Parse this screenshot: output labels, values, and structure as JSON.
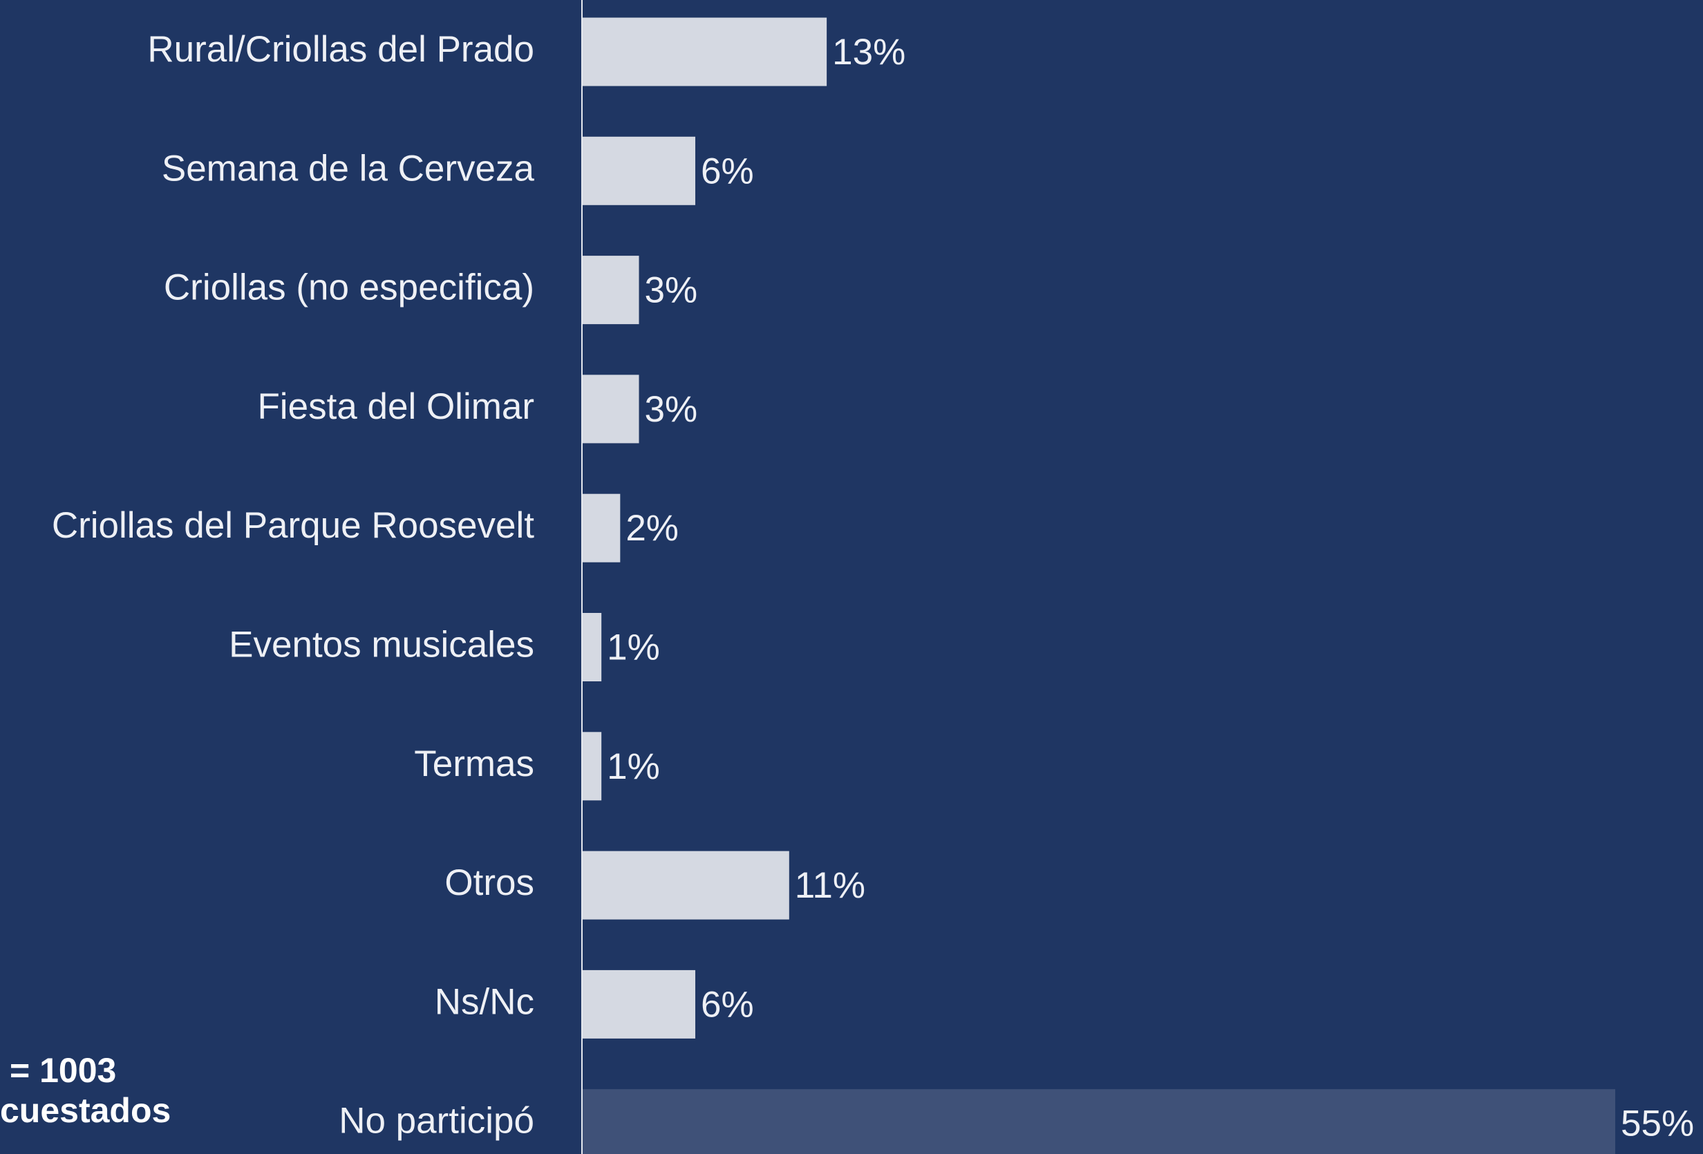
{
  "chart_data": {
    "type": "hbar",
    "categories": [
      "Rural/Criollas del Prado",
      "Semana de la Cerveza",
      "Criollas (no especifica)",
      "Fiesta del Olimar",
      "Criollas del Parque Roosevelt",
      "Eventos musicales",
      "Termas",
      "Otros",
      "Ns/Nc",
      "No participó"
    ],
    "values": [
      13,
      6,
      3,
      3,
      2,
      1,
      1,
      11,
      6,
      55
    ],
    "value_labels": [
      "13%",
      "6%",
      "3%",
      "3%",
      "2%",
      "1%",
      "1%",
      "11%",
      "6%",
      "55%"
    ],
    "colors": [
      "#d5d9e2",
      "#d5d9e2",
      "#d5d9e2",
      "#d5d9e2",
      "#d5d9e2",
      "#d5d9e2",
      "#d5d9e2",
      "#d5d9e2",
      "#d5d9e2",
      "#3f5178"
    ],
    "xlim": [
      0,
      55
    ],
    "notes": [
      "= 1003",
      "cuestados"
    ]
  }
}
